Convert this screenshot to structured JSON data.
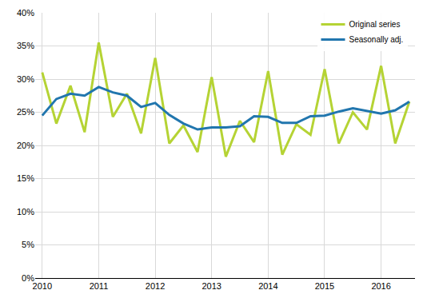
{
  "chart_data": {
    "type": "line",
    "categories": [
      "2010",
      null,
      null,
      null,
      "2011",
      null,
      null,
      null,
      "2012",
      null,
      null,
      null,
      "2013",
      null,
      null,
      null,
      "2014",
      null,
      null,
      null,
      "2015",
      null,
      null,
      null,
      "2016",
      null,
      null
    ],
    "series": [
      {
        "name": "Original series",
        "color": "#b5d334",
        "values": [
          31,
          23.3,
          29,
          22,
          35.5,
          24.3,
          27.8,
          21.8,
          33.2,
          20.3,
          23,
          19,
          30.3,
          18.3,
          23.7,
          20.5,
          31.2,
          18.6,
          23.2,
          21.6,
          31.5,
          20.3,
          25,
          22.4,
          32,
          20.3,
          26.6
        ]
      },
      {
        "name": "Seasonally adj.",
        "color": "#2176ae",
        "values": [
          24.5,
          27,
          27.8,
          27.5,
          28.8,
          28,
          27.5,
          25.8,
          26.4,
          24.6,
          23.3,
          22.4,
          22.7,
          22.7,
          22.9,
          24.4,
          24.3,
          23.4,
          23.4,
          24.4,
          24.5,
          25.1,
          25.6,
          25.2,
          24.8,
          25.3,
          26.6
        ]
      }
    ],
    "ylim": [
      0,
      40
    ],
    "yticks": [
      {
        "value": 0,
        "label": "0%"
      },
      {
        "value": 5,
        "label": "5%"
      },
      {
        "value": 10,
        "label": "10%"
      },
      {
        "value": 15,
        "label": "15%"
      },
      {
        "value": 20,
        "label": "20%"
      },
      {
        "value": 25,
        "label": "25%"
      },
      {
        "value": 30,
        "label": "30%"
      },
      {
        "value": 35,
        "label": "35%"
      },
      {
        "value": 40,
        "label": "40%"
      }
    ],
    "grid": true,
    "legend": "top-right"
  }
}
